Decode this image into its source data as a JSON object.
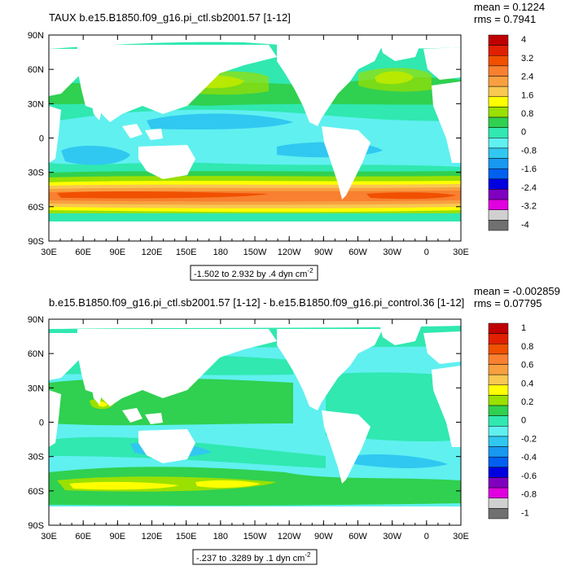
{
  "panels": [
    {
      "title": "TAUX b.e15.B1850.f09_g16.pi_ctl.sb2001.57 [1-12]",
      "stats": [
        "mean = 0.1224",
        "rms = 0.7941"
      ],
      "lat_labels": [
        "90N",
        "60N",
        "30N",
        "0",
        "30S",
        "60S",
        "90S"
      ],
      "lon_labels": [
        "30E",
        "60E",
        "90E",
        "120E",
        "150E",
        "180",
        "150W",
        "120W",
        "90W",
        "60W",
        "30W",
        "0",
        "30E"
      ],
      "range_text": "-1.502 to 2.932 by .4 dyn cm",
      "range_sup": "-2",
      "colorbar_labels": [
        "4",
        "3.2",
        "2.4",
        "1.6",
        "0.8",
        "0",
        "-0.8",
        "-1.6",
        "-2.4",
        "-3.2",
        "-4"
      ],
      "colorbar_colors": [
        "#c00000",
        "#e02000",
        "#f05000",
        "#f88030",
        "#f8a040",
        "#f8c850",
        "#ffff00",
        "#9ae000",
        "#30d050",
        "#30e8b0",
        "#60f0f0",
        "#30c8f0",
        "#1898f0",
        "#0060f0",
        "#0000e0",
        "#8000c0",
        "#e000e0",
        "#d0d0d0",
        "#707070"
      ]
    },
    {
      "title": "b.e15.B1850.f09_g16.pi_ctl.sb2001.57 [1-12] - b.e15.B1850.f09_g16.pi_control.36 [1-12]",
      "stats": [
        "mean = -0.002859",
        "rms = 0.07795"
      ],
      "lat_labels": [
        "90N",
        "60N",
        "30N",
        "0",
        "30S",
        "60S",
        "90S"
      ],
      "lon_labels": [
        "30E",
        "60E",
        "90E",
        "120E",
        "150E",
        "180",
        "150W",
        "120W",
        "90W",
        "60W",
        "30W",
        "0",
        "30E"
      ],
      "range_text": "-.237 to .3289 by .1 dyn cm",
      "range_sup": "-2",
      "colorbar_labels": [
        "1",
        "0.8",
        "0.6",
        "0.4",
        "0.2",
        "0",
        "-0.2",
        "-0.4",
        "-0.6",
        "-0.8",
        "-1"
      ],
      "colorbar_colors": [
        "#c00000",
        "#e02000",
        "#f05000",
        "#f88030",
        "#f8a040",
        "#f8c850",
        "#ffff00",
        "#9ae000",
        "#30d050",
        "#30e8b0",
        "#60f0f0",
        "#30c8f0",
        "#1898f0",
        "#0060f0",
        "#0000e0",
        "#8000c0",
        "#e000e0",
        "#d0d0d0",
        "#707070"
      ]
    }
  ]
}
